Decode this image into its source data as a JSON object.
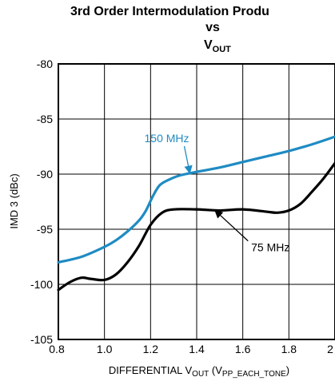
{
  "chart_data": {
    "type": "line",
    "title_line1": "3rd Order Intermodulation Produ",
    "title_line2": "vs",
    "title_line3_main": "V",
    "title_line3_sub": "OUT",
    "xlabel_prefix": "DIFFERENTIAL V",
    "xlabel_sub1": "OUT",
    "xlabel_mid": " (V",
    "xlabel_sub2": "PP_EACH_TONE",
    "xlabel_suffix": ")",
    "ylabel": "IMD 3 (dBc)",
    "xlim": [
      0.8,
      2.0
    ],
    "ylim": [
      -105,
      -80
    ],
    "x_ticks": [
      0.8,
      1.0,
      1.2,
      1.4,
      1.6,
      1.8,
      2.0
    ],
    "x_tick_labels": [
      "0.8",
      "1.0",
      "1.2",
      "1.4",
      "1.6",
      "1.8",
      "2"
    ],
    "y_ticks": [
      -80,
      -85,
      -90,
      -95,
      -100,
      -105
    ],
    "y_tick_labels": [
      "-80",
      "-85",
      "-90",
      "-95",
      "-100",
      "-105"
    ],
    "grid": true,
    "series": [
      {
        "name": "150 MHz",
        "color": "#1e8bc3",
        "x": [
          0.8,
          0.9,
          1.0,
          1.05,
          1.1,
          1.15,
          1.18,
          1.21,
          1.24,
          1.28,
          1.33,
          1.4,
          1.5,
          1.6,
          1.7,
          1.8,
          1.9,
          2.0
        ],
        "y": [
          -98.0,
          -97.5,
          -96.6,
          -96.0,
          -95.2,
          -94.2,
          -93.3,
          -92.0,
          -91.0,
          -90.5,
          -90.1,
          -89.8,
          -89.4,
          -88.9,
          -88.4,
          -87.9,
          -87.3,
          -86.6
        ]
      },
      {
        "name": "75 MHz",
        "color": "#000000",
        "x": [
          0.8,
          0.85,
          0.9,
          0.94,
          1.0,
          1.05,
          1.1,
          1.15,
          1.2,
          1.25,
          1.3,
          1.4,
          1.5,
          1.6,
          1.7,
          1.75,
          1.8,
          1.85,
          1.9,
          1.95,
          2.0
        ],
        "y": [
          -100.5,
          -99.8,
          -99.4,
          -99.5,
          -99.6,
          -99.1,
          -98.0,
          -96.5,
          -94.6,
          -93.5,
          -93.2,
          -93.2,
          -93.3,
          -93.2,
          -93.4,
          -93.5,
          -93.3,
          -92.7,
          -91.6,
          -90.4,
          -89.0
        ]
      }
    ],
    "annotations": [
      {
        "text": "150 MHz",
        "color": "#1e8bc3",
        "text_x": 1.27,
        "text_y": -87.1,
        "arrow_to_x": 1.37,
        "arrow_to_y": -89.9
      },
      {
        "text": "75 MHz",
        "color": "#000000",
        "text_x": 1.72,
        "text_y": -97.0,
        "arrow_to_x": 1.48,
        "arrow_to_y": -93.3
      }
    ]
  }
}
